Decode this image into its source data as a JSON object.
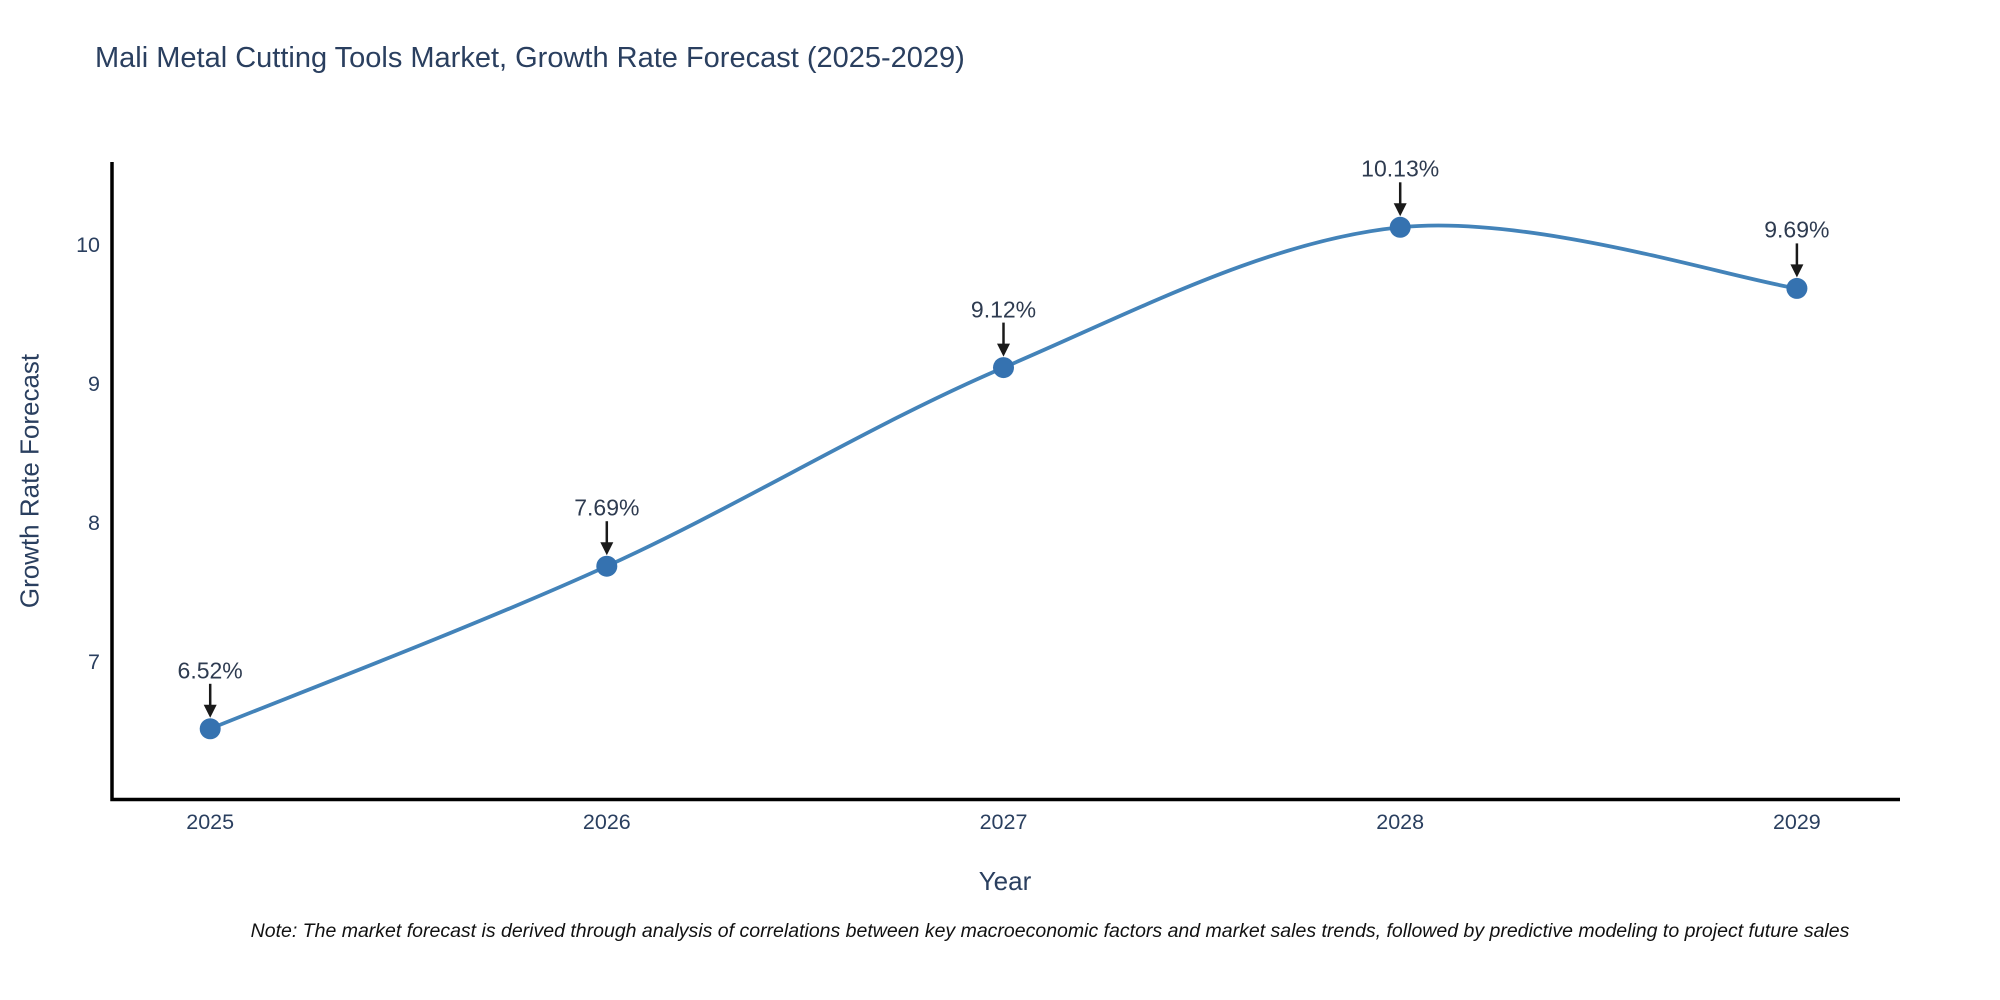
{
  "chart_data": {
    "type": "line",
    "line_shape": "spline",
    "title": "Mali Metal Cutting Tools Market, Growth Rate Forecast (2025-2029)",
    "xlabel": "Year",
    "ylabel": "Growth Rate Forecast",
    "x": [
      2025,
      2026,
      2027,
      2028,
      2029
    ],
    "y": [
      6.52,
      7.69,
      9.12,
      10.13,
      9.69
    ],
    "point_labels": [
      "6.52%",
      "7.69%",
      "9.12%",
      "10.13%",
      "9.69%"
    ],
    "x_tick_labels": [
      "2025",
      "2026",
      "2027",
      "2028",
      "2029"
    ],
    "y_tick_values": [
      7,
      8,
      9,
      10
    ],
    "xlim": [
      2024.75,
      2029.26
    ],
    "ylim": [
      6.0,
      10.6
    ],
    "grid": false,
    "legend": "none",
    "colors": {
      "line": "#4383b9",
      "marker": "#3572b0",
      "axis": "#000000",
      "tick_text": "#2a3f5f",
      "title_text": "#2a3f5f",
      "annotation_text": "#2e3b50",
      "arrow": "#1a1a1a",
      "background": "#ffffff"
    }
  },
  "note": "Note: The market forecast is derived through analysis of correlations between key macroeconomic factors and market sales trends, followed by predictive modeling to project future sales"
}
